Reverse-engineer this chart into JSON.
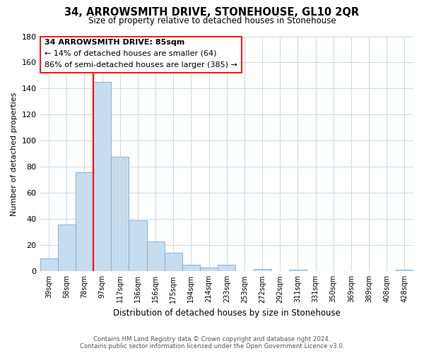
{
  "title": "34, ARROWSMITH DRIVE, STONEHOUSE, GL10 2QR",
  "subtitle": "Size of property relative to detached houses in Stonehouse",
  "xlabel": "Distribution of detached houses by size in Stonehouse",
  "ylabel": "Number of detached properties",
  "bar_labels": [
    "39sqm",
    "58sqm",
    "78sqm",
    "97sqm",
    "117sqm",
    "136sqm",
    "156sqm",
    "175sqm",
    "194sqm",
    "214sqm",
    "233sqm",
    "253sqm",
    "272sqm",
    "292sqm",
    "311sqm",
    "331sqm",
    "350sqm",
    "369sqm",
    "389sqm",
    "408sqm",
    "428sqm"
  ],
  "bar_values": [
    10,
    36,
    76,
    145,
    88,
    39,
    23,
    14,
    5,
    3,
    5,
    0,
    2,
    0,
    1,
    0,
    0,
    0,
    0,
    0,
    1
  ],
  "bar_color": "#c5ddef",
  "bar_edge_color": "#7aaacc",
  "ylim": [
    0,
    180
  ],
  "yticks": [
    0,
    20,
    40,
    60,
    80,
    100,
    120,
    140,
    160,
    180
  ],
  "annotation_text_line1": "34 ARROWSMITH DRIVE: 85sqm",
  "annotation_text_line2": "← 14% of detached houses are smaller (64)",
  "annotation_text_line3": "86% of semi-detached houses are larger (385) →",
  "footer_line1": "Contains HM Land Registry data © Crown copyright and database right 2024.",
  "footer_line2": "Contains public sector information licensed under the Open Government Licence v3.0.",
  "background_color": "#ffffff",
  "grid_color": "#c8d8e8"
}
